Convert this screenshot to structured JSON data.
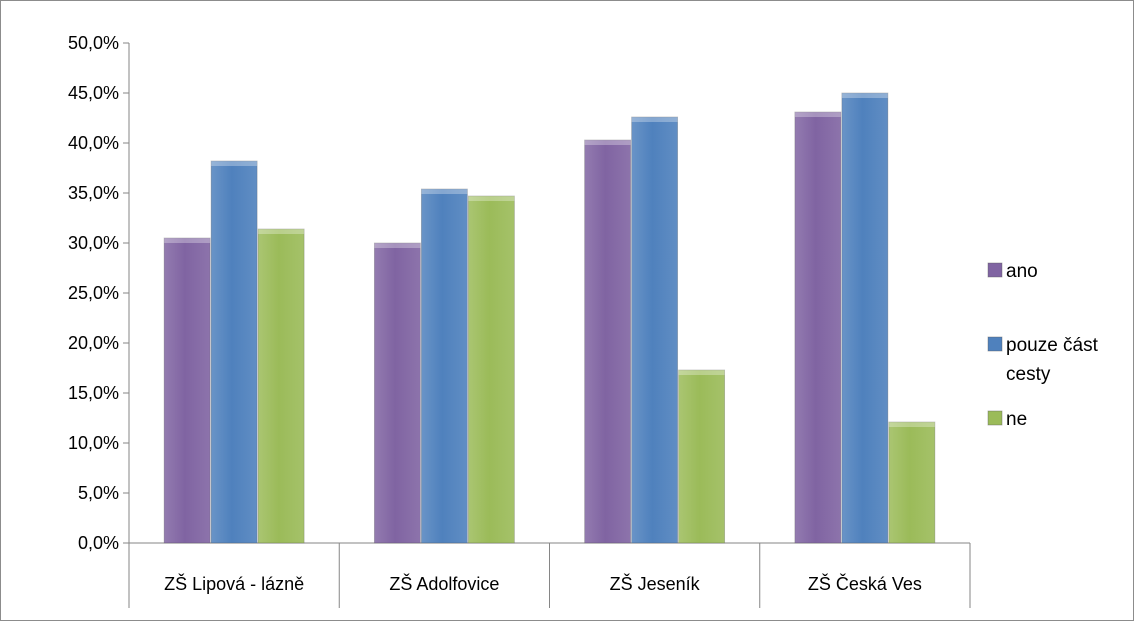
{
  "chart_data": {
    "type": "bar",
    "categories": [
      "ZŠ Lipová - lázně",
      "ZŠ Adolfovice",
      "ZŠ Jeseník",
      "ZŠ Česká Ves"
    ],
    "series": [
      {
        "name": "ano",
        "values": [
          30.5,
          30.0,
          40.3,
          43.1
        ],
        "color": "#8064a2"
      },
      {
        "name": "pouze část cesty",
        "values": [
          38.2,
          35.4,
          42.6,
          45.0
        ],
        "color": "#4f81bd"
      },
      {
        "name": "ne",
        "values": [
          31.4,
          34.7,
          17.3,
          12.1
        ],
        "color": "#9bbb59"
      }
    ],
    "yticks": [
      "0,0%",
      "5,0%",
      "10,0%",
      "15,0%",
      "20,0%",
      "25,0%",
      "30,0%",
      "35,0%",
      "40,0%",
      "45,0%",
      "50,0%"
    ],
    "ylim": [
      0,
      50
    ],
    "legend_position": "right",
    "grid": false
  }
}
